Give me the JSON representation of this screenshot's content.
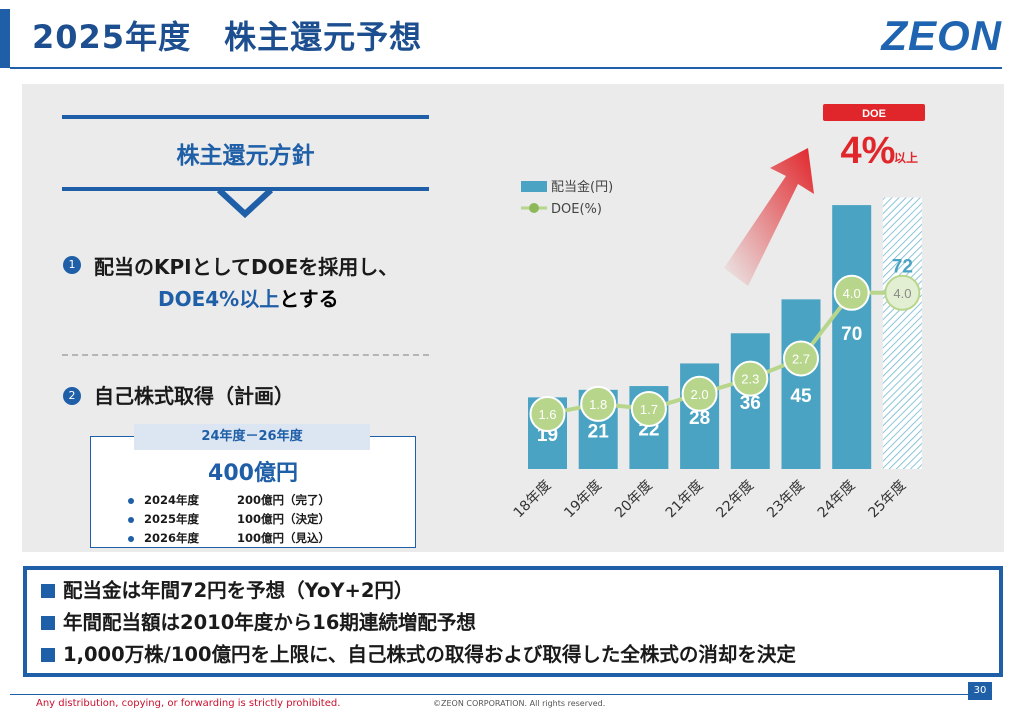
{
  "header": {
    "title": "2025年度　株主還元予想",
    "logo": "ZEON"
  },
  "policy": {
    "heading": "株主還元方針",
    "item1_num": "1",
    "item1_line1": "配当のKPIとしてDOEを採用し、",
    "item1_line2_highlight": "DOE4%以上",
    "item1_line2_rest": "とする",
    "item2_num": "2",
    "item2_text": "自己株式取得（計画）",
    "buyback": {
      "period": "24年度－26年度",
      "total": "400億円",
      "rows": [
        {
          "year": "2024年度",
          "amount": "200億円（完了）"
        },
        {
          "year": "2025年度",
          "amount": "100億円（決定）"
        },
        {
          "year": "2026年度",
          "amount": "100億円（見込）"
        }
      ]
    }
  },
  "chart_data": {
    "type": "bar",
    "categories": [
      "18年度",
      "19年度",
      "20年度",
      "21年度",
      "22年度",
      "23年度",
      "24年度",
      "25年度"
    ],
    "series": [
      {
        "name": "配当金(円)",
        "type": "bar",
        "values": [
          19,
          21,
          22,
          28,
          36,
          45,
          70,
          72
        ],
        "forecast_from_index": 7
      },
      {
        "name": "DOE(%)",
        "type": "line",
        "values": [
          1.6,
          1.8,
          1.7,
          2.0,
          2.3,
          2.7,
          4.0,
          4.0
        ],
        "labels": [
          "1.6",
          "1.8",
          "1.7",
          "2.0",
          "2.3",
          "2.7",
          "4.0",
          "4.0"
        ]
      }
    ],
    "legend": [
      "配当金(円)",
      "DOE(%)"
    ],
    "callout": {
      "badge": "DOE",
      "value": "4%",
      "suffix": "以上"
    },
    "ylim": [
      0,
      80
    ]
  },
  "summary": [
    "配当金は年間72円を予想（YoY+2円）",
    "年間配当額は2010年度から16期連続増配予想",
    "1,000万株/100億円を上限に、自己株式の取得および取得した全株式の消却を決定"
  ],
  "footer": {
    "notice": "Any distribution, copying, or forwarding is strictly prohibited.",
    "copyright": "©ZEON CORPORATION. All rights reserved.",
    "page": "30"
  },
  "colors": {
    "primary": "#1f5fa8",
    "bar": "#4aa3c3",
    "doe_line": "#b7d68c",
    "doe_marker": "#8db85a",
    "red": "#e0262b"
  }
}
